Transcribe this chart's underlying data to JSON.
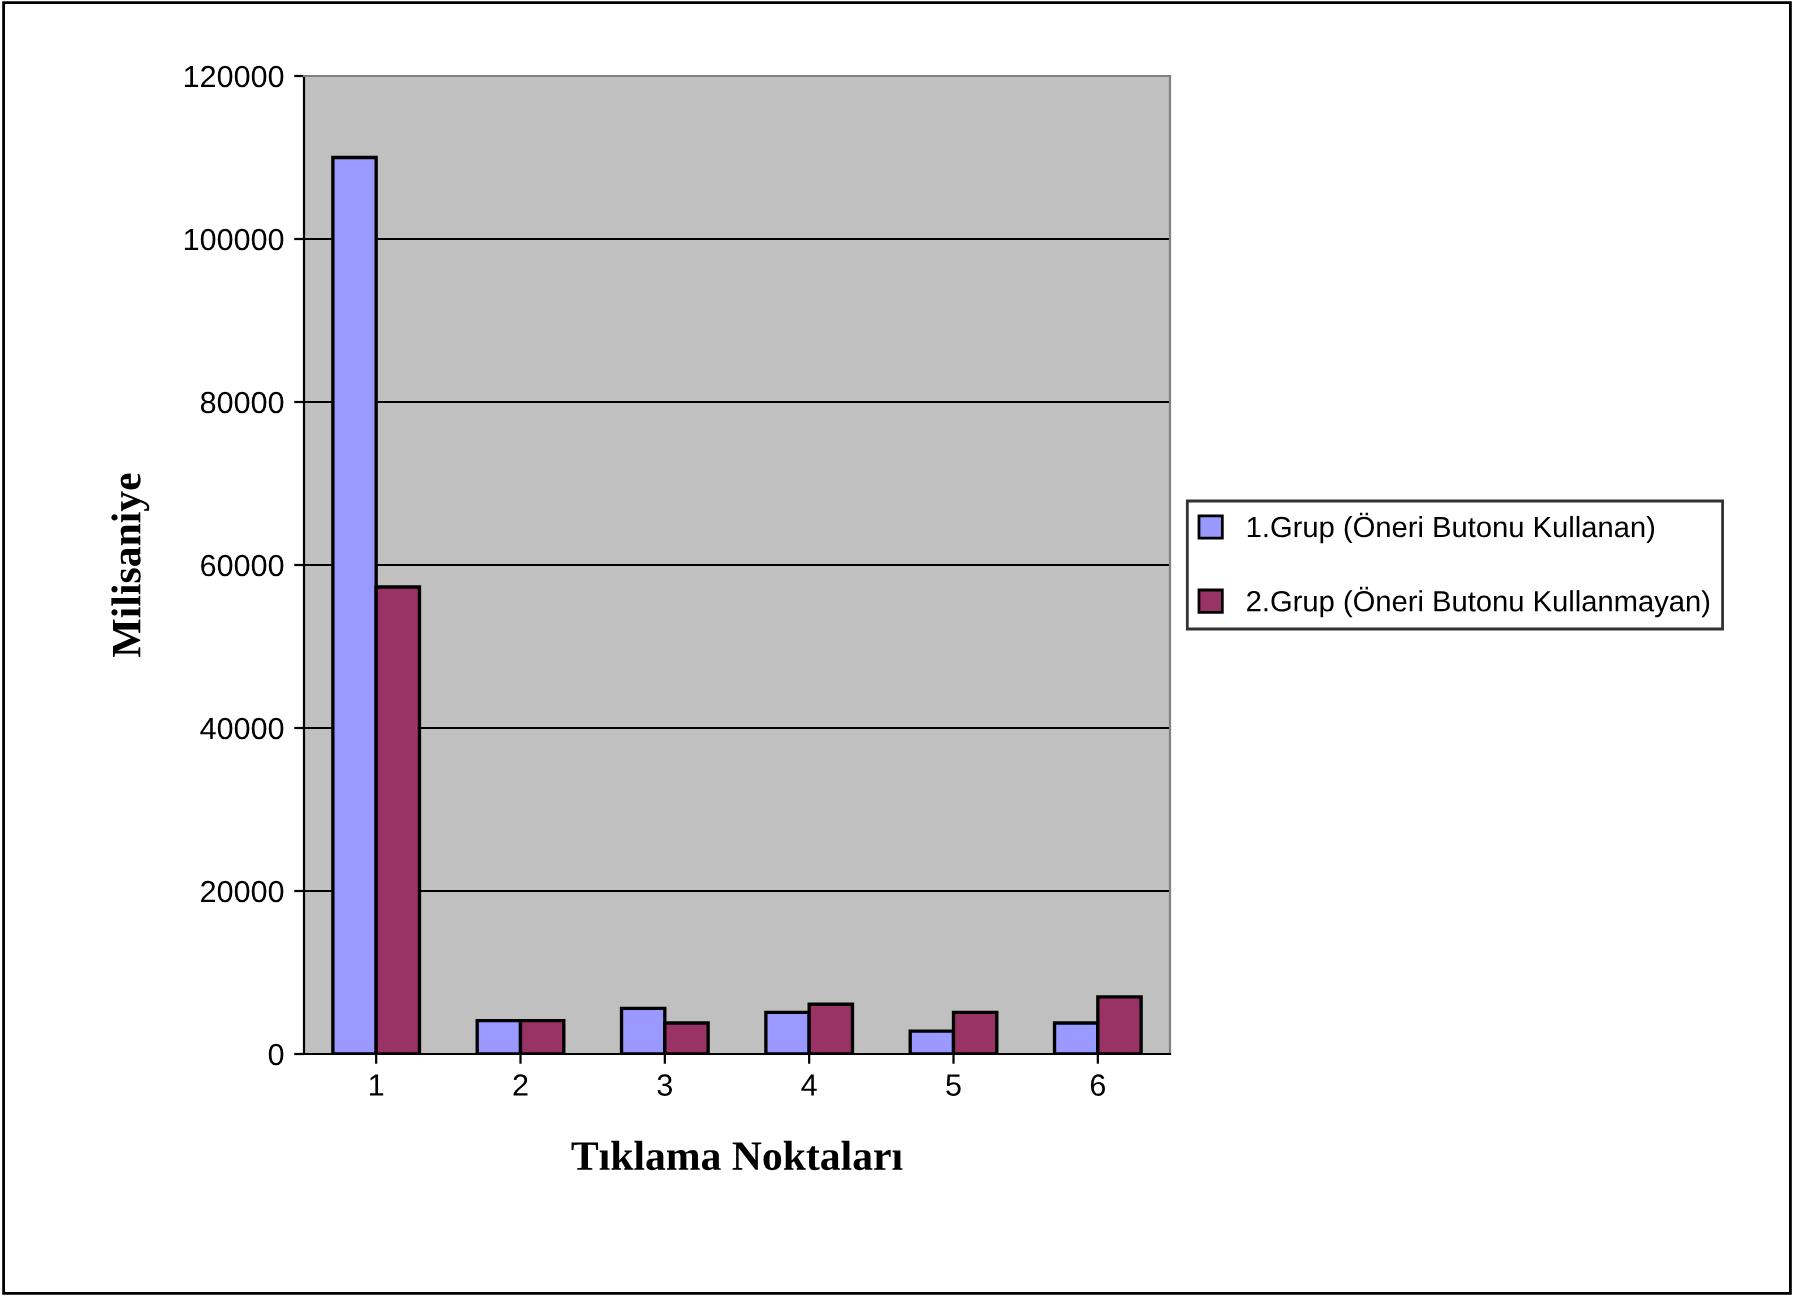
{
  "chart_data": {
    "type": "bar",
    "xlabel": "Tıklama Noktaları",
    "ylabel": "Milisaniye",
    "categories": [
      "1",
      "2",
      "3",
      "4",
      "5",
      "6"
    ],
    "series": [
      {
        "name": "1.Grup (Öneri Butonu Kullanan)",
        "color": "#9999ff",
        "values": [
          110000,
          4100,
          5600,
          5100,
          2800,
          3800
        ]
      },
      {
        "name": "2.Grup (Öneri Butonu Kullanmayan)",
        "color": "#993366",
        "values": [
          57300,
          4100,
          3800,
          6100,
          5100,
          7000
        ]
      }
    ],
    "ylim": [
      0,
      120000
    ],
    "yticks": [
      0,
      20000,
      40000,
      60000,
      80000,
      100000,
      120000
    ],
    "grid": "y",
    "legend": "right"
  }
}
